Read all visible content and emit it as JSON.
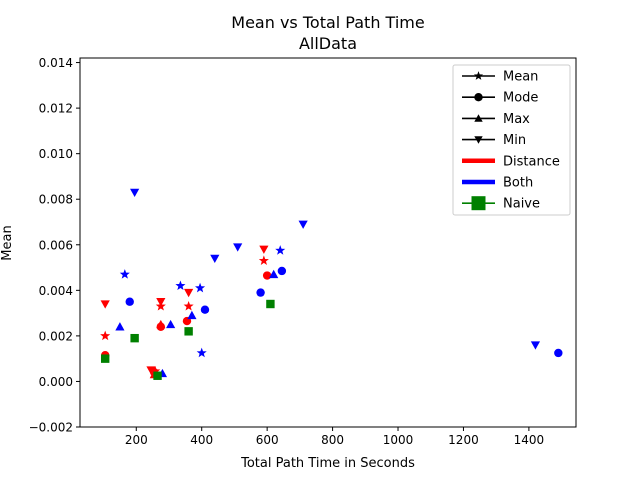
{
  "chart_data": {
    "type": "scatter",
    "title": "Mean vs Total Path Time",
    "subtitle": "AllData",
    "xlabel": "Total Path Time in Seconds",
    "ylabel": "Mean",
    "xlim": [
      28,
      1544
    ],
    "ylim": [
      -0.002,
      0.0142
    ],
    "xticks": [
      200,
      400,
      600,
      800,
      1000,
      1200,
      1400
    ],
    "xtick_labels": [
      "200",
      "400",
      "600",
      "800",
      "1000",
      "1200",
      "1400"
    ],
    "yticks": [
      -0.002,
      0.0,
      0.002,
      0.004,
      0.006,
      0.008,
      0.01,
      0.012,
      0.014
    ],
    "ytick_labels": [
      "−0.002",
      "0.000",
      "0.002",
      "0.004",
      "0.006",
      "0.008",
      "0.010",
      "0.012",
      "0.014"
    ],
    "grid": false,
    "legend_position": "top-right",
    "legend": [
      {
        "label": "Mean",
        "kind": "marker",
        "marker": "star"
      },
      {
        "label": "Mode",
        "kind": "marker",
        "marker": "circle"
      },
      {
        "label": "Max",
        "kind": "marker",
        "marker": "triangle-up"
      },
      {
        "label": "Min",
        "kind": "marker",
        "marker": "triangle-down"
      },
      {
        "label": "Distance",
        "kind": "color",
        "color": "#ff0000"
      },
      {
        "label": "Both",
        "kind": "color",
        "color": "#0000ff"
      },
      {
        "label": "Naive",
        "kind": "square",
        "color": "#008000"
      }
    ],
    "series": [
      {
        "color": "#ff0000",
        "marker": "star",
        "points": [
          [
            105,
            0.002
          ],
          [
            275,
            0.0033
          ],
          [
            360,
            0.0033
          ],
          [
            590,
            0.0053
          ],
          [
            258,
            0.00045
          ]
        ]
      },
      {
        "color": "#ff0000",
        "marker": "circle",
        "points": [
          [
            105,
            0.00115
          ],
          [
            275,
            0.0024
          ],
          [
            355,
            0.00265
          ],
          [
            600,
            0.00465
          ],
          [
            255,
            0.0004
          ]
        ]
      },
      {
        "color": "#ff0000",
        "marker": "triangle-up",
        "points": [
          [
            275,
            0.0025
          ],
          [
            255,
            0.0003
          ]
        ]
      },
      {
        "color": "#ff0000",
        "marker": "triangle-down",
        "points": [
          [
            105,
            0.0034
          ],
          [
            275,
            0.0035
          ],
          [
            360,
            0.0039
          ],
          [
            590,
            0.0058
          ],
          [
            245,
            0.0005
          ]
        ]
      },
      {
        "color": "#0000ff",
        "marker": "star",
        "points": [
          [
            165,
            0.0047
          ],
          [
            335,
            0.0042
          ],
          [
            395,
            0.0041
          ],
          [
            400,
            0.00125
          ],
          [
            640,
            0.00575
          ]
        ]
      },
      {
        "color": "#0000ff",
        "marker": "circle",
        "points": [
          [
            180,
            0.0035
          ],
          [
            410,
            0.00315
          ],
          [
            580,
            0.0039
          ],
          [
            645,
            0.00485
          ],
          [
            1490,
            0.00125
          ]
        ]
      },
      {
        "color": "#0000ff",
        "marker": "triangle-up",
        "points": [
          [
            150,
            0.0024
          ],
          [
            305,
            0.0025
          ],
          [
            370,
            0.0029
          ],
          [
            620,
            0.0047
          ],
          [
            280,
            0.00035
          ]
        ]
      },
      {
        "color": "#0000ff",
        "marker": "triangle-down",
        "points": [
          [
            195,
            0.0083
          ],
          [
            440,
            0.0054
          ],
          [
            510,
            0.0059
          ],
          [
            710,
            0.0069
          ],
          [
            1420,
            0.0016
          ]
        ]
      },
      {
        "color": "#008000",
        "marker": "square",
        "points": [
          [
            105,
            0.001
          ],
          [
            195,
            0.0019
          ],
          [
            360,
            0.0022
          ],
          [
            610,
            0.0034
          ],
          [
            265,
            0.00025
          ]
        ]
      }
    ]
  }
}
